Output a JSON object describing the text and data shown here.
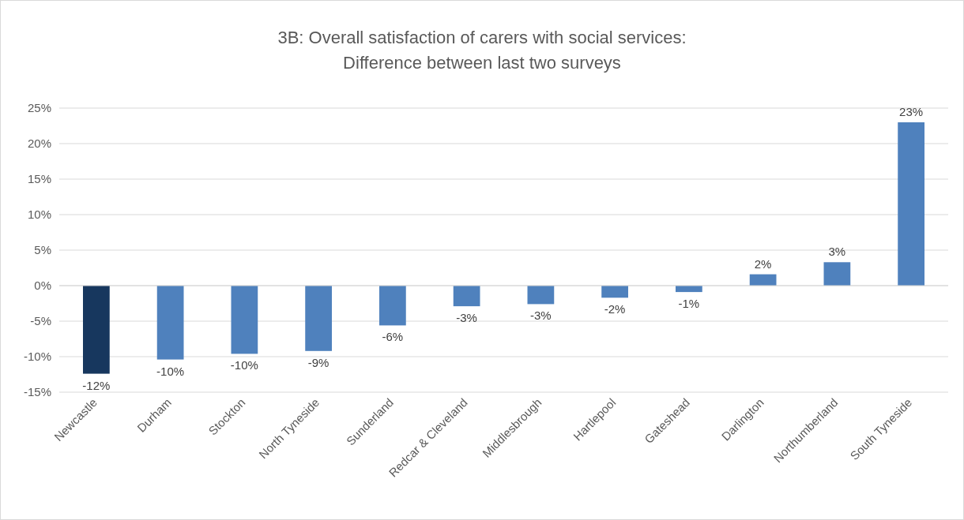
{
  "chart_data": {
    "type": "bar",
    "title": "3B: Overall satisfaction of carers with social services: Difference between last two surveys",
    "categories": [
      "Newcastle",
      "Durham",
      "Stockton",
      "North Tyneside",
      "Sunderland",
      "Redcar & Cleveland",
      "Middlesbrough",
      "Hartlepool",
      "Gateshead",
      "Darlington",
      "Northumberland",
      "South Tyneside"
    ],
    "values": [
      -12.4,
      -10.4,
      -9.6,
      -9.2,
      -5.6,
      -2.9,
      -2.6,
      -1.7,
      -0.9,
      1.6,
      3.3,
      23.0
    ],
    "value_labels": [
      "-12%",
      "-10%",
      "-10%",
      "-9%",
      "-6%",
      "-3%",
      "-3%",
      "-2%",
      "-1%",
      "2%",
      "3%",
      "23%"
    ],
    "colors": [
      "#17375e",
      "#4f81bd",
      "#4f81bd",
      "#4f81bd",
      "#4f81bd",
      "#4f81bd",
      "#4f81bd",
      "#4f81bd",
      "#4f81bd",
      "#4f81bd",
      "#4f81bd",
      "#4f81bd"
    ],
    "ylim": [
      -15,
      25
    ],
    "yticks": [
      {
        "value": -15,
        "label": "-15%"
      },
      {
        "value": -10,
        "label": "-10%"
      },
      {
        "value": -5,
        "label": "-5%"
      },
      {
        "value": 0,
        "label": "0%"
      },
      {
        "value": 5,
        "label": "5%"
      },
      {
        "value": 10,
        "label": "10%"
      },
      {
        "value": 15,
        "label": "15%"
      },
      {
        "value": 20,
        "label": "20%"
      },
      {
        "value": 25,
        "label": "25%"
      }
    ],
    "grid": "y"
  }
}
